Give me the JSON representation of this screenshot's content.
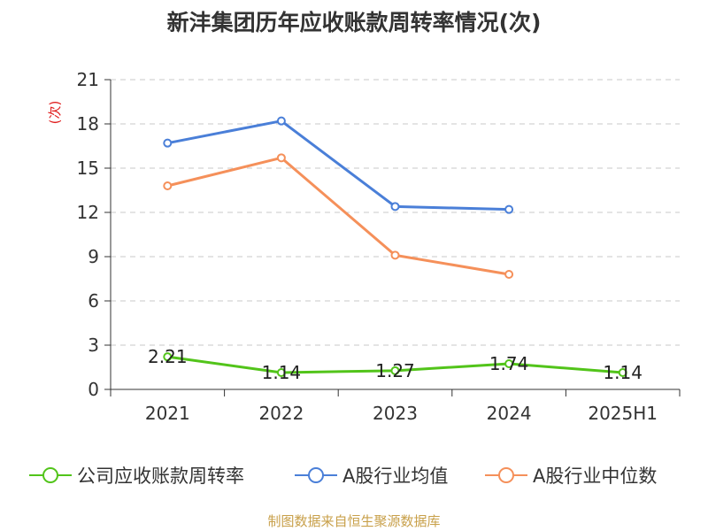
{
  "chart_data": {
    "type": "line",
    "title": "新沣集团历年应收账款周转率情况(次)",
    "ylabel": "(次)",
    "xlabel": "",
    "categories": [
      "2021",
      "2022",
      "2023",
      "2024",
      "2025H1"
    ],
    "ylim": [
      0,
      21
    ],
    "yticks": [
      0,
      3,
      6,
      9,
      12,
      15,
      18,
      21
    ],
    "grid": true,
    "legend_position": "bottom",
    "series": [
      {
        "name": "公司应收账款周转率",
        "color": "#52c41a",
        "values": [
          2.21,
          1.14,
          1.27,
          1.74,
          1.14
        ],
        "data_labels": [
          "2.21",
          "1.14",
          "1.27",
          "1.74",
          "1.14"
        ]
      },
      {
        "name": "A股行业均值",
        "color": "#4a7fd8",
        "values": [
          16.7,
          18.2,
          12.4,
          12.2,
          null
        ]
      },
      {
        "name": "A股行业中位数",
        "color": "#f5905a",
        "values": [
          13.8,
          15.7,
          9.1,
          7.8,
          null
        ]
      }
    ]
  },
  "source_note": "制图数据来自恒生聚源数据库"
}
